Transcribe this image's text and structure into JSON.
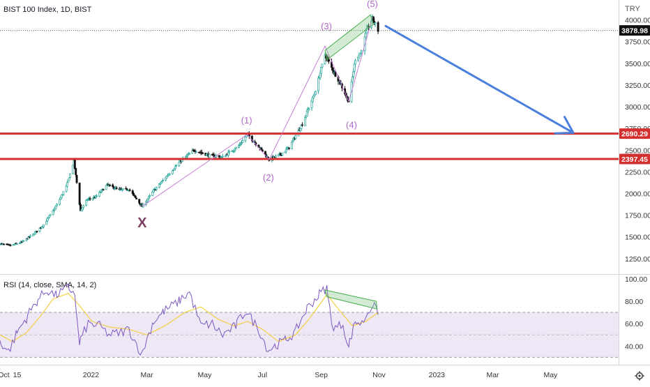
{
  "header": {
    "symbol_title": "BIST 100 Index, 1D, BIST",
    "currency": "TRY",
    "last_price": "3878.98",
    "level_upper": "2690.29",
    "level_lower": "2397.45"
  },
  "rsi_header": {
    "label": "RSI (14, close, SMA, 14, 2)"
  },
  "colors": {
    "up": "#26a69a",
    "down": "#111111",
    "level": "#d32f2f",
    "arrow": "#4a7fdc",
    "wave": "#c77dd6",
    "wave_label": "#b066c8",
    "x_label": "#7a3e63",
    "rsi_line": "#7e57c2",
    "rsi_ma": "#f5d142",
    "rsi_band": "#ede7f6",
    "box": "#81c784"
  },
  "chart_data": [
    {
      "type": "candlestick",
      "title": "BIST 100 Index, 1D, BIST",
      "ylabel": "TRY",
      "y_ticks": [
        "4000.00",
        "3750.00",
        "3500.00",
        "3250.00",
        "3000.00",
        "2750.00",
        "2500.00",
        "2250.00",
        "2000.00",
        "1750.00",
        "1500.00",
        "1250.00"
      ],
      "x_ticks": [
        "Oct",
        "15",
        "2022",
        "Mar",
        "May",
        "Jul",
        "Sep",
        "Nov",
        "2023",
        "Mar",
        "May"
      ],
      "x_range": [
        "2021-09-27",
        "2023-05-25"
      ],
      "ylim": [
        1080,
        4230
      ],
      "scale": "linear",
      "close_path": [
        [
          "2021-09-27",
          1420
        ],
        [
          "2021-10-08",
          1400
        ],
        [
          "2021-10-20",
          1440
        ],
        [
          "2021-11-01",
          1530
        ],
        [
          "2021-11-12",
          1640
        ],
        [
          "2021-11-24",
          1830
        ],
        [
          "2021-12-06",
          2080
        ],
        [
          "2021-12-14",
          2370
        ],
        [
          "2021-12-21",
          1800
        ],
        [
          "2021-12-28",
          1930
        ],
        [
          "2022-01-06",
          1960
        ],
        [
          "2022-01-18",
          2100
        ],
        [
          "2022-01-31",
          2040
        ],
        [
          "2022-02-10",
          2050
        ],
        [
          "2022-02-24",
          1850
        ],
        [
          "2022-03-08",
          2030
        ],
        [
          "2022-03-22",
          2200
        ],
        [
          "2022-04-06",
          2380
        ],
        [
          "2022-04-20",
          2500
        ],
        [
          "2022-05-05",
          2440
        ],
        [
          "2022-05-20",
          2420
        ],
        [
          "2022-06-06",
          2550
        ],
        [
          "2022-06-15",
          2680
        ],
        [
          "2022-06-28",
          2530
        ],
        [
          "2022-07-08",
          2390
        ],
        [
          "2022-07-20",
          2450
        ],
        [
          "2022-07-29",
          2530
        ],
        [
          "2022-08-12",
          2800
        ],
        [
          "2022-08-25",
          3150
        ],
        [
          "2022-09-05",
          3600
        ],
        [
          "2022-09-12",
          3450
        ],
        [
          "2022-09-22",
          3250
        ],
        [
          "2022-09-30",
          3060
        ],
        [
          "2022-10-07",
          3550
        ],
        [
          "2022-10-13",
          3620
        ],
        [
          "2022-10-19",
          3880
        ],
        [
          "2022-10-25",
          4020
        ],
        [
          "2022-10-31",
          3879
        ]
      ],
      "levels": [
        {
          "price": 2690.29,
          "label": "2690.29"
        },
        {
          "price": 2397.45,
          "label": "2397.45"
        }
      ],
      "annotations": [
        {
          "label": "X",
          "date": "2022-02-24",
          "price": 1850
        },
        {
          "label": "(1)",
          "date": "2022-06-15",
          "price": 2680
        },
        {
          "label": "(2)",
          "date": "2022-07-08",
          "price": 2390
        },
        {
          "label": "(3)",
          "date": "2022-09-05",
          "price": 3700
        },
        {
          "label": "(4)",
          "date": "2022-09-30",
          "price": 3060
        },
        {
          "label": "(5)",
          "date": "2022-10-25",
          "price": 4020
        }
      ],
      "wave_lines": [
        [
          "2022-02-24",
          1850
        ],
        [
          "2022-06-15",
          2680
        ],
        [
          "2022-07-08",
          2390
        ],
        [
          "2022-09-05",
          3700
        ],
        [
          "2022-09-30",
          3060
        ],
        [
          "2022-10-25",
          4020
        ]
      ],
      "forecast_arrow": {
        "from": [
          "2022-11-08",
          3930
        ],
        "to": [
          "2023-05-25",
          2700
        ]
      },
      "channel_box": [
        [
          "2022-09-05",
          3650
        ],
        [
          "2022-10-23",
          4060
        ],
        [
          "2022-10-26",
          3950
        ],
        [
          "2022-09-07",
          3540
        ]
      ]
    },
    {
      "type": "line",
      "title": "RSI (14, close, SMA, 14, 2)",
      "y_ticks": [
        "100.00",
        "80.00",
        "60.00",
        "40.00"
      ],
      "ylim": [
        24,
        103
      ],
      "band": [
        30,
        70
      ],
      "series": [
        {
          "values_path": [
            [
              "2021-09-27",
              45
            ],
            [
              "2021-10-06",
              35
            ],
            [
              "2021-10-14",
              50
            ],
            [
              "2021-10-25",
              65
            ],
            [
              "2021-11-05",
              80
            ],
            [
              "2021-11-16",
              90
            ],
            [
              "2021-11-25",
              85
            ],
            [
              "2021-12-08",
              92
            ],
            [
              "2021-12-15",
              88
            ],
            [
              "2021-12-20",
              42
            ],
            [
              "2021-12-29",
              60
            ],
            [
              "2022-01-10",
              58
            ],
            [
              "2022-01-20",
              50
            ],
            [
              "2022-02-01",
              52
            ],
            [
              "2022-02-10",
              55
            ],
            [
              "2022-02-24",
              32
            ],
            [
              "2022-03-07",
              60
            ],
            [
              "2022-03-18",
              70
            ],
            [
              "2022-04-04",
              80
            ],
            [
              "2022-04-15",
              88
            ],
            [
              "2022-04-27",
              58
            ],
            [
              "2022-05-09",
              60
            ],
            [
              "2022-05-20",
              50
            ],
            [
              "2022-06-03",
              58
            ],
            [
              "2022-06-14",
              72
            ],
            [
              "2022-06-27",
              55
            ],
            [
              "2022-07-07",
              36
            ],
            [
              "2022-07-14",
              40
            ],
            [
              "2022-07-25",
              45
            ],
            [
              "2022-08-05",
              52
            ],
            [
              "2022-08-16",
              72
            ],
            [
              "2022-08-29",
              85
            ],
            [
              "2022-09-07",
              92
            ],
            [
              "2022-09-14",
              55
            ],
            [
              "2022-09-24",
              60
            ],
            [
              "2022-09-30",
              38
            ],
            [
              "2022-10-07",
              62
            ],
            [
              "2022-10-14",
              60
            ],
            [
              "2022-10-20",
              70
            ],
            [
              "2022-10-26",
              78
            ],
            [
              "2022-10-31",
              68
            ]
          ]
        },
        {
          "values_path": [
            [
              "2021-09-27",
              50
            ],
            [
              "2021-10-10",
              44
            ],
            [
              "2021-10-25",
              52
            ],
            [
              "2021-11-08",
              66
            ],
            [
              "2021-11-22",
              82
            ],
            [
              "2021-12-08",
              87
            ],
            [
              "2021-12-20",
              76
            ],
            [
              "2022-01-02",
              62
            ],
            [
              "2022-01-20",
              57
            ],
            [
              "2022-02-10",
              55
            ],
            [
              "2022-03-01",
              50
            ],
            [
              "2022-03-20",
              58
            ],
            [
              "2022-04-10",
              70
            ],
            [
              "2022-04-27",
              75
            ],
            [
              "2022-05-15",
              64
            ],
            [
              "2022-06-01",
              58
            ],
            [
              "2022-06-15",
              62
            ],
            [
              "2022-07-01",
              55
            ],
            [
              "2022-07-18",
              44
            ],
            [
              "2022-08-05",
              50
            ],
            [
              "2022-08-20",
              65
            ],
            [
              "2022-09-07",
              86
            ],
            [
              "2022-09-20",
              72
            ],
            [
              "2022-10-04",
              58
            ],
            [
              "2022-10-18",
              62
            ],
            [
              "2022-10-31",
              70
            ]
          ]
        }
      ],
      "divergence_box": [
        [
          "2022-09-05",
          90
        ],
        [
          "2022-10-29",
          80
        ],
        [
          "2022-10-30",
          73
        ],
        [
          "2022-09-07",
          84
        ]
      ]
    }
  ]
}
